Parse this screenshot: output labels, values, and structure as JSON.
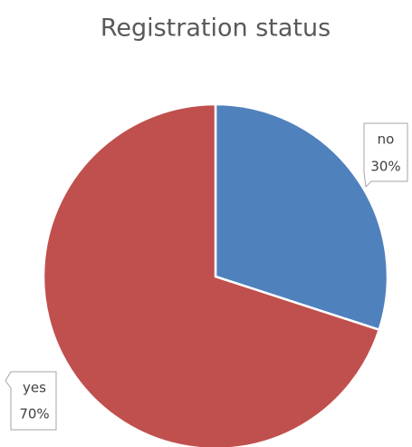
{
  "chart_data": {
    "type": "pie",
    "title": "Registration status",
    "categories": [
      "no",
      "yes"
    ],
    "values": [
      30,
      70
    ],
    "value_labels": [
      "30%",
      "70%"
    ],
    "colors": [
      "#4f81bd",
      "#c0504d"
    ]
  }
}
